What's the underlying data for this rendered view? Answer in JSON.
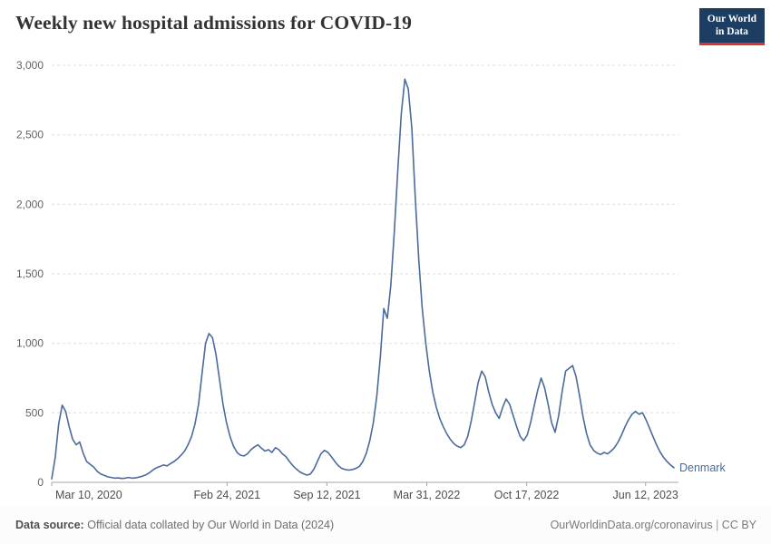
{
  "logo": {
    "line1": "Our World",
    "line2": "in Data"
  },
  "footer": {
    "source_label": "Data source:",
    "source_text": "Official data collated by Our World in Data (2024)",
    "link_text": "OurWorldinData.org/coronavirus",
    "separator": "|",
    "license": "CC BY"
  },
  "colors": {
    "line": "#4C6A9C",
    "grid": "#DDDDDD",
    "axis": "#A5A5A5",
    "tick_text": "#616161",
    "logo_bg": "#1D3D63",
    "logo_accent": "#DC3232"
  },
  "chart_data": {
    "type": "line",
    "title": "Weekly new hospital admissions for COVID-19",
    "xlabel": "",
    "ylabel": "",
    "x_unit": "days since 2020-03-10 (weekly points)",
    "xlim": [
      0,
      1255
    ],
    "ylim": [
      0,
      3000
    ],
    "grid": "horizontal-dashed",
    "legend": "end-of-line-label",
    "y_ticks": [
      0,
      500,
      1000,
      1500,
      2000,
      2500,
      3000
    ],
    "x_ticks": [
      {
        "day": 0,
        "label": "Mar 10, 2020"
      },
      {
        "day": 351,
        "label": "Feb 24, 2021"
      },
      {
        "day": 551,
        "label": "Sep 12, 2021"
      },
      {
        "day": 751,
        "label": "Mar 31, 2022"
      },
      {
        "day": 951,
        "label": "Oct 17, 2022"
      },
      {
        "day": 1189,
        "label": "Jun 12, 2023"
      }
    ],
    "series": [
      {
        "name": "Denmark",
        "color": "#4C6A9C",
        "x_start_day": 0,
        "x_step_days": 7,
        "values": [
          25,
          180,
          420,
          555,
          510,
          400,
          310,
          270,
          290,
          210,
          150,
          130,
          110,
          80,
          60,
          50,
          40,
          35,
          30,
          32,
          28,
          30,
          35,
          30,
          32,
          38,
          45,
          55,
          70,
          90,
          105,
          115,
          125,
          118,
          135,
          150,
          170,
          195,
          225,
          270,
          330,
          420,
          560,
          780,
          1000,
          1070,
          1040,
          920,
          740,
          560,
          430,
          330,
          260,
          215,
          195,
          190,
          205,
          235,
          255,
          270,
          245,
          225,
          235,
          215,
          250,
          235,
          205,
          185,
          150,
          120,
          95,
          75,
          62,
          52,
          60,
          95,
          150,
          205,
          230,
          215,
          185,
          150,
          120,
          100,
          92,
          88,
          92,
          100,
          115,
          150,
          210,
          300,
          430,
          620,
          900,
          1250,
          1180,
          1420,
          1800,
          2250,
          2650,
          2900,
          2830,
          2550,
          2050,
          1600,
          1250,
          1000,
          800,
          650,
          540,
          460,
          400,
          350,
          310,
          280,
          260,
          250,
          270,
          330,
          440,
          580,
          720,
          800,
          760,
          650,
          560,
          500,
          460,
          540,
          600,
          560,
          480,
          400,
          330,
          300,
          340,
          430,
          550,
          660,
          750,
          680,
          560,
          430,
          360,
          480,
          650,
          800,
          820,
          840,
          760,
          620,
          470,
          350,
          270,
          230,
          210,
          200,
          215,
          205,
          225,
          250,
          290,
          340,
          400,
          450,
          490,
          510,
          490,
          500,
          450,
          390,
          330,
          270,
          220,
          180,
          150,
          125,
          105
        ]
      }
    ]
  }
}
